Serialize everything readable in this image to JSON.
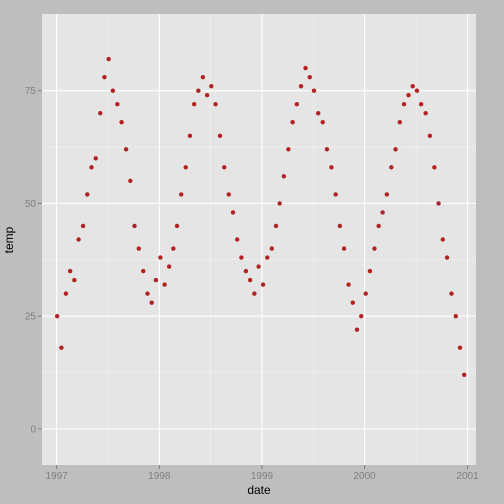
{
  "chart_data": {
    "type": "scatter",
    "title": "",
    "xlabel": "date",
    "ylabel": "temp",
    "x_type": "date",
    "xlim": [
      "1996-11-10",
      "2001-01-31"
    ],
    "ylim": [
      -8,
      92
    ],
    "x_ticks": [
      {
        "value": "1997-01-01",
        "label": "1997"
      },
      {
        "value": "1998-01-01",
        "label": "1998"
      },
      {
        "value": "1999-01-01",
        "label": "1999"
      },
      {
        "value": "2000-01-01",
        "label": "2000"
      },
      {
        "value": "2001-01-01",
        "label": "2001"
      }
    ],
    "y_ticks": [
      0,
      25,
      50,
      75
    ],
    "grid": true,
    "point_color": "#b22222",
    "background_color": "#e5e5e5",
    "series": [
      {
        "x": [
          "1997-01-03",
          "1997-01-18",
          "1997-02-03",
          "1997-02-18",
          "1997-03-05",
          "1997-03-20",
          "1997-04-05",
          "1997-04-20",
          "1997-05-05",
          "1997-05-20",
          "1997-06-05",
          "1997-06-20",
          "1997-07-05",
          "1997-07-20",
          "1997-08-05",
          "1997-08-20",
          "1997-09-05",
          "1997-09-20",
          "1997-10-05",
          "1997-10-20",
          "1997-11-05",
          "1997-11-20",
          "1997-12-05",
          "1997-12-20",
          "1998-01-05",
          "1998-01-20",
          "1998-02-05",
          "1998-02-20",
          "1998-03-05",
          "1998-03-20",
          "1998-04-05",
          "1998-04-20",
          "1998-05-05",
          "1998-05-20",
          "1998-06-05",
          "1998-06-20",
          "1998-07-05",
          "1998-07-20",
          "1998-08-05",
          "1998-08-20",
          "1998-09-05",
          "1998-09-20",
          "1998-10-05",
          "1998-10-20",
          "1998-11-05",
          "1998-11-20",
          "1998-12-05",
          "1998-12-20",
          "1999-01-05",
          "1999-01-20",
          "1999-02-05",
          "1999-02-20",
          "1999-03-05",
          "1999-03-20",
          "1999-04-05",
          "1999-04-20",
          "1999-05-05",
          "1999-05-20",
          "1999-06-05",
          "1999-06-20",
          "1999-07-05",
          "1999-07-20",
          "1999-08-05",
          "1999-08-20",
          "1999-09-05",
          "1999-09-20",
          "1999-10-05",
          "1999-10-20",
          "1999-11-05",
          "1999-11-20",
          "1999-12-05",
          "1999-12-20",
          "2000-01-05",
          "2000-01-20",
          "2000-02-05",
          "2000-02-20",
          "2000-03-05",
          "2000-03-20",
          "2000-04-05",
          "2000-04-20",
          "2000-05-05",
          "2000-05-20",
          "2000-06-05",
          "2000-06-20",
          "2000-07-05",
          "2000-07-20",
          "2000-08-05",
          "2000-08-20",
          "2000-09-05",
          "2000-09-20",
          "2000-10-05",
          "2000-10-20",
          "2000-11-05",
          "2000-11-20",
          "2000-12-05",
          "2000-12-20"
        ],
        "y": [
          25,
          18,
          30,
          35,
          33,
          42,
          45,
          52,
          58,
          60,
          70,
          78,
          82,
          75,
          72,
          68,
          62,
          55,
          45,
          40,
          35,
          30,
          28,
          33,
          38,
          32,
          36,
          40,
          45,
          52,
          58,
          65,
          72,
          75,
          78,
          74,
          76,
          72,
          65,
          58,
          52,
          48,
          42,
          38,
          35,
          33,
          30,
          36,
          32,
          38,
          40,
          45,
          50,
          56,
          62,
          68,
          72,
          76,
          80,
          78,
          75,
          70,
          68,
          62,
          58,
          52,
          45,
          40,
          32,
          28,
          22,
          25,
          30,
          35,
          40,
          45,
          48,
          52,
          58,
          62,
          68,
          72,
          74,
          76,
          75,
          72,
          70,
          65,
          58,
          50,
          42,
          38,
          30,
          25,
          18,
          12
        ]
      }
    ]
  }
}
